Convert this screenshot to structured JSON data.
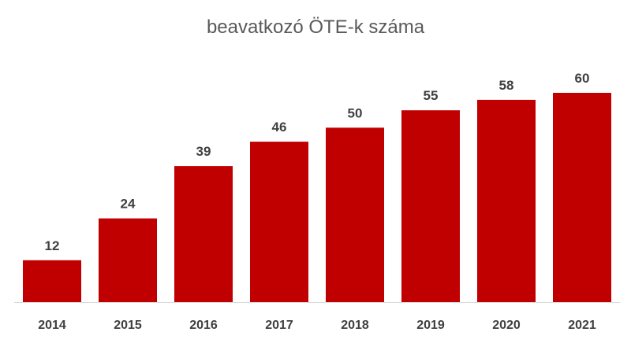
{
  "chart_data": {
    "type": "bar",
    "title": "beavatkozó ÖTE-k száma",
    "categories": [
      "2014",
      "2015",
      "2016",
      "2017",
      "2018",
      "2019",
      "2020",
      "2021"
    ],
    "values": [
      12,
      24,
      39,
      46,
      50,
      55,
      58,
      60
    ],
    "ylim": [
      0,
      60
    ],
    "grid": false,
    "legend": "none",
    "bar_color": "#C00000"
  }
}
